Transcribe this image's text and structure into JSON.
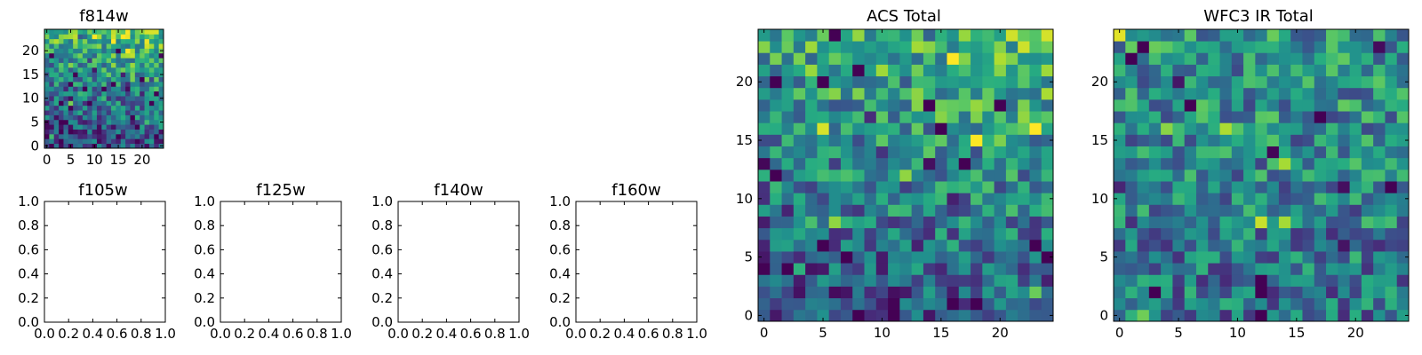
{
  "chart_data": [
    {
      "type": "heatmap",
      "title": "f814w",
      "xlim": [
        -0.5,
        24.5
      ],
      "ylim": [
        -0.5,
        24.5
      ],
      "xticks": [
        "0",
        "5",
        "10",
        "15",
        "20"
      ],
      "yticks": [
        "0",
        "5",
        "10",
        "15",
        "20"
      ],
      "colormap": "viridis",
      "seed": 814,
      "gradient": 0.55,
      "note": "25x25 pixel intensities; brighter (yellow) toward upper right"
    },
    {
      "type": "heatmap",
      "title": "f105w",
      "empty": true,
      "xlim": [
        0,
        1
      ],
      "ylim": [
        0,
        1
      ],
      "xticks": [
        "0.0",
        "0.2",
        "0.4",
        "0.6",
        "0.8",
        "1.0"
      ],
      "yticks": [
        "0.0",
        "0.2",
        "0.4",
        "0.6",
        "0.8",
        "1.0"
      ]
    },
    {
      "type": "heatmap",
      "title": "f125w",
      "empty": true,
      "xlim": [
        0,
        1
      ],
      "ylim": [
        0,
        1
      ],
      "xticks": [
        "0.0",
        "0.2",
        "0.4",
        "0.6",
        "0.8",
        "1.0"
      ],
      "yticks": [
        "0.0",
        "0.2",
        "0.4",
        "0.6",
        "0.8",
        "1.0"
      ]
    },
    {
      "type": "heatmap",
      "title": "f140w",
      "empty": true,
      "xlim": [
        0,
        1
      ],
      "ylim": [
        0,
        1
      ],
      "xticks": [
        "0.0",
        "0.2",
        "0.4",
        "0.6",
        "0.8",
        "1.0"
      ],
      "yticks": [
        "0.0",
        "0.2",
        "0.4",
        "0.6",
        "0.8",
        "1.0"
      ]
    },
    {
      "type": "heatmap",
      "title": "f160w",
      "empty": true,
      "xlim": [
        0,
        1
      ],
      "ylim": [
        0,
        1
      ],
      "xticks": [
        "0.0",
        "0.2",
        "0.4",
        "0.6",
        "0.8",
        "1.0"
      ],
      "yticks": [
        "0.0",
        "0.2",
        "0.4",
        "0.6",
        "0.8",
        "1.0"
      ]
    },
    {
      "type": "heatmap",
      "title": "ACS Total",
      "xlim": [
        -0.5,
        24.5
      ],
      "ylim": [
        -0.5,
        24.5
      ],
      "xticks": [
        "0",
        "5",
        "10",
        "15",
        "20"
      ],
      "yticks": [
        "0",
        "5",
        "10",
        "15",
        "20"
      ],
      "colormap": "viridis",
      "seed": 1001,
      "gradient": 0.45
    },
    {
      "type": "heatmap",
      "title": "WFC3 IR Total",
      "xlim": [
        -0.5,
        24.5
      ],
      "ylim": [
        -0.5,
        24.5
      ],
      "xticks": [
        "0",
        "5",
        "10",
        "15",
        "20"
      ],
      "yticks": [
        "0",
        "5",
        "10",
        "15",
        "20"
      ],
      "colormap": "viridis",
      "seed": 3003,
      "gradient": 0.15
    }
  ]
}
